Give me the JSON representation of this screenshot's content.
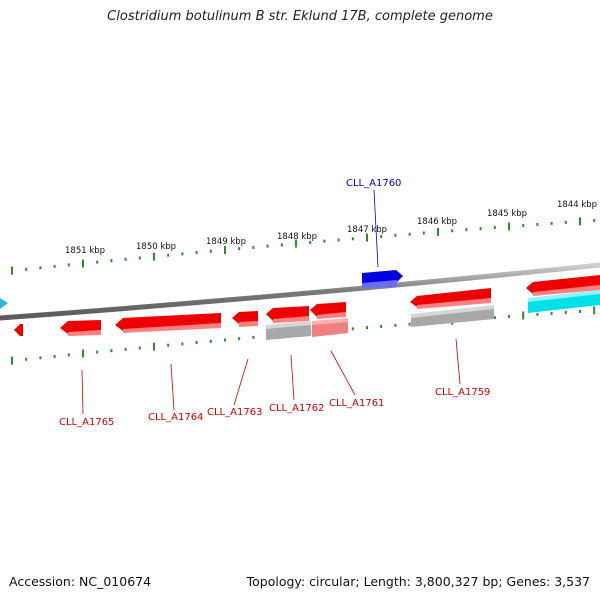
{
  "title": "Clostridium botulinum B str. Eklund 17B, complete genome",
  "footer": {
    "accession": "Accession: NC_010674",
    "summary": "Topology: circular; Length: 3,800,327 bp; Genes: 3,537"
  },
  "colors": {
    "backbone": "#8a8a8a",
    "tick": "#2e8b2e",
    "gene_red": "#ee0000",
    "gene_blue": "#0000dd",
    "gene_grey": "#a8a8a8",
    "gene_pink": "#f08080",
    "gene_cyan": "#00e0e8",
    "label_red": "#cc0000",
    "label_blue": "#0000cc"
  },
  "kbp_ticks": [
    {
      "label": "1851 kbp"
    },
    {
      "label": "1850 kbp"
    },
    {
      "label": "1849 kbp"
    },
    {
      "label": "1848 kbp"
    },
    {
      "label": "1847 kbp"
    },
    {
      "label": "1846 kbp"
    },
    {
      "label": "1845 kbp"
    },
    {
      "label": "1844 kbp"
    }
  ],
  "gene_labels": [
    {
      "id": "CLL_A1760",
      "color": "blue"
    },
    {
      "id": "CLL_A1765",
      "color": "red"
    },
    {
      "id": "CLL_A1764",
      "color": "red"
    },
    {
      "id": "CLL_A1763",
      "color": "red"
    },
    {
      "id": "CLL_A1762",
      "color": "red"
    },
    {
      "id": "CLL_A1761",
      "color": "red"
    },
    {
      "id": "CLL_A1759",
      "color": "red"
    }
  ]
}
